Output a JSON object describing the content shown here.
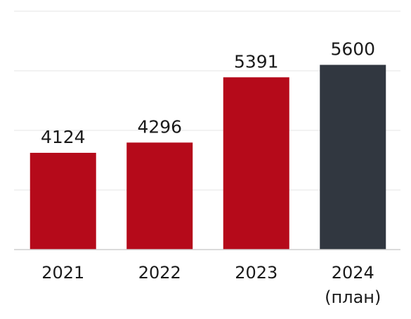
{
  "chart_data": {
    "type": "bar",
    "categories": [
      "2021",
      "2022",
      "2023",
      "2024"
    ],
    "category_sublabels": [
      "",
      "",
      "",
      "(план)"
    ],
    "values": [
      4124,
      4296,
      5391,
      5600
    ],
    "data_labels": [
      "4124",
      "4296",
      "5391",
      "5600"
    ],
    "bar_colors": [
      "#b50a1a",
      "#b50a1a",
      "#b50a1a",
      "#313740"
    ],
    "title": "",
    "xlabel": "",
    "ylabel": "",
    "ylim": [
      2500,
      6500
    ],
    "grid": true,
    "legend": "none"
  }
}
